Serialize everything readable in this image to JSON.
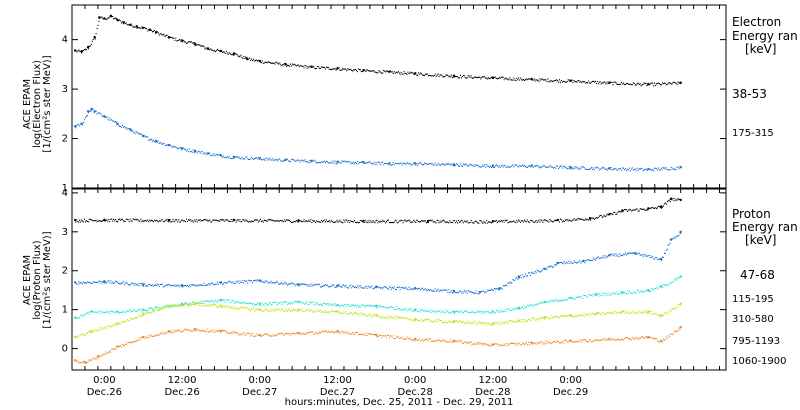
{
  "chart_data": [
    {
      "type": "scatter",
      "panel": "electron",
      "ylabel": [
        "ACE EPAM",
        "log(Electron Flux)",
        "[1/(cm²s ster MeV)]"
      ],
      "legend_title": [
        "Electron",
        "Energy ran",
        "[keV]"
      ],
      "ylim": [
        1,
        4.7
      ],
      "yticks": [
        "1",
        "2",
        "3",
        "4"
      ],
      "grid": false,
      "series": [
        {
          "name": "38-53",
          "color": "#000000",
          "x": [
            -4.5,
            -3.5,
            -2.5,
            -1.5,
            -0.8,
            0,
            1,
            2,
            3,
            4,
            5,
            6,
            7,
            8,
            10,
            12,
            14,
            16,
            18,
            20,
            22,
            24,
            28,
            32,
            36,
            40,
            44,
            48,
            54,
            60,
            66,
            72,
            78,
            84,
            89
          ],
          "y": [
            3.78,
            3.76,
            3.85,
            4.05,
            4.45,
            4.43,
            4.48,
            4.4,
            4.35,
            4.3,
            4.27,
            4.24,
            4.2,
            4.15,
            4.05,
            3.98,
            3.92,
            3.82,
            3.77,
            3.72,
            3.62,
            3.57,
            3.5,
            3.45,
            3.42,
            3.38,
            3.35,
            3.32,
            3.27,
            3.23,
            3.2,
            3.17,
            3.13,
            3.1,
            3.13
          ]
        },
        {
          "name": "175-315",
          "color": "#1a6fd0",
          "x": [
            -4.5,
            -3.5,
            -2.5,
            -2,
            -1.5,
            0,
            2,
            4,
            6,
            8,
            10,
            12,
            14,
            16,
            18,
            20,
            24,
            28,
            32,
            36,
            40,
            44,
            48,
            54,
            60,
            66,
            72,
            78,
            84,
            89
          ],
          "y": [
            2.25,
            2.3,
            2.55,
            2.6,
            2.55,
            2.45,
            2.3,
            2.18,
            2.05,
            1.95,
            1.87,
            1.8,
            1.75,
            1.7,
            1.66,
            1.63,
            1.6,
            1.57,
            1.55,
            1.53,
            1.52,
            1.5,
            1.5,
            1.48,
            1.45,
            1.45,
            1.42,
            1.4,
            1.38,
            1.42
          ]
        }
      ]
    },
    {
      "type": "scatter",
      "panel": "proton",
      "ylabel": [
        "ACE EPAM",
        "log(Proton Flux)",
        "[1/(cm²s ster MeV)]"
      ],
      "legend_title": [
        "Proton",
        "Energy ran",
        "[keV]"
      ],
      "ylim": [
        -0.55,
        4.1
      ],
      "yticks": [
        "0",
        "1",
        "2",
        "3",
        "4"
      ],
      "grid": false,
      "series": [
        {
          "name": "47-68",
          "color": "#000000",
          "x": [
            -4.5,
            0,
            10,
            20,
            30,
            40,
            50,
            60,
            70,
            75,
            78,
            80,
            84,
            86,
            87.5,
            89
          ],
          "y": [
            3.3,
            3.31,
            3.3,
            3.3,
            3.29,
            3.28,
            3.28,
            3.27,
            3.3,
            3.35,
            3.45,
            3.55,
            3.6,
            3.65,
            3.85,
            3.82
          ]
        },
        {
          "name": "115-195",
          "color": "#1a6fd0",
          "x": [
            -4.5,
            0,
            6,
            12,
            18,
            24,
            30,
            36,
            42,
            48,
            54,
            58,
            61,
            64,
            68,
            70,
            74,
            78,
            82,
            86,
            87.5,
            89
          ],
          "y": [
            1.7,
            1.73,
            1.65,
            1.62,
            1.7,
            1.75,
            1.65,
            1.62,
            1.58,
            1.55,
            1.48,
            1.45,
            1.55,
            1.85,
            2.05,
            2.2,
            2.25,
            2.4,
            2.45,
            2.3,
            2.8,
            3.0
          ]
        },
        {
          "name": "310-580",
          "color": "#2ae0d0",
          "x": [
            -4.5,
            -2,
            2,
            6,
            12,
            18,
            24,
            30,
            36,
            42,
            48,
            54,
            60,
            64,
            68,
            72,
            76,
            80,
            84,
            86,
            89
          ],
          "y": [
            0.8,
            0.95,
            0.95,
            1.0,
            1.15,
            1.25,
            1.15,
            1.2,
            1.12,
            1.1,
            1.0,
            0.95,
            0.95,
            1.05,
            1.2,
            1.3,
            1.4,
            1.45,
            1.5,
            1.6,
            1.85
          ]
        },
        {
          "name": "795-1193",
          "color": "#c4e21a",
          "x": [
            -4.5,
            -2,
            2,
            6,
            10,
            14,
            18,
            24,
            30,
            36,
            42,
            48,
            54,
            60,
            64,
            68,
            72,
            76,
            80,
            84,
            86,
            89
          ],
          "y": [
            0.3,
            0.45,
            0.65,
            0.9,
            1.1,
            1.15,
            1.1,
            1.0,
            1.0,
            0.95,
            0.85,
            0.75,
            0.7,
            0.65,
            0.72,
            0.8,
            0.85,
            0.9,
            0.95,
            0.95,
            0.85,
            1.15
          ]
        },
        {
          "name": "1060-1900",
          "color": "#e88a2a",
          "x": [
            -4.5,
            -3,
            -1,
            2,
            6,
            10,
            14,
            18,
            24,
            30,
            36,
            42,
            48,
            54,
            60,
            66,
            72,
            78,
            84,
            86,
            89
          ],
          "y": [
            -0.3,
            -0.35,
            -0.2,
            0.05,
            0.3,
            0.45,
            0.5,
            0.45,
            0.35,
            0.4,
            0.45,
            0.35,
            0.25,
            0.2,
            0.1,
            0.15,
            0.2,
            0.25,
            0.3,
            0.2,
            0.55
          ]
        }
      ]
    }
  ],
  "x_axis": {
    "xlim": [
      -5,
      96
    ],
    "major_ticks": [
      0,
      12,
      24,
      36,
      48,
      60,
      72,
      84,
      96
    ],
    "tick_labels": [
      {
        "time": "0:00",
        "date": "Dec.26"
      },
      {
        "time": "12:00",
        "date": "Dec.26"
      },
      {
        "time": "0:00",
        "date": "Dec.27"
      },
      {
        "time": "12:00",
        "date": "Dec.27"
      },
      {
        "time": "0:00",
        "date": "Dec.28"
      },
      {
        "time": "12:00",
        "date": "Dec.28"
      },
      {
        "time": "0:00",
        "date": "Dec.29"
      }
    ],
    "label": "hours:minutes, Dec. 25, 2011 - Dec. 29, 2011"
  }
}
